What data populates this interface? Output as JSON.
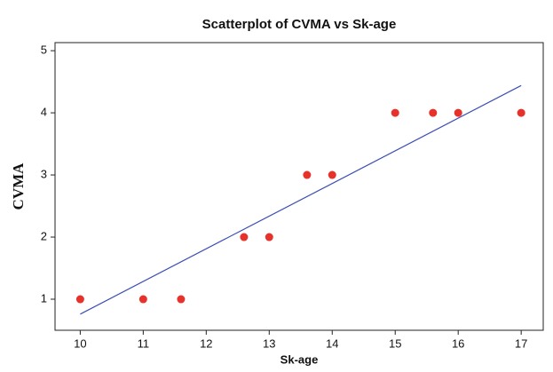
{
  "chart_data": {
    "type": "scatter",
    "title": "Scatterplot of CVMA vs Sk-age",
    "x_label": "Sk-age",
    "y_label": "CVMA",
    "series": [
      {
        "color": "#e8312a",
        "x": [
          10,
          11,
          11.6,
          12.6,
          13,
          13.6,
          14,
          15,
          15.6,
          16,
          17
        ],
        "values": [
          1,
          1,
          1,
          2,
          2,
          3,
          3,
          4,
          4,
          4,
          4
        ]
      }
    ],
    "fit_line": {
      "color": "#3d4fb5",
      "x": [
        10,
        17
      ],
      "y": [
        0.76,
        4.44
      ]
    },
    "xlim": [
      9.6,
      17.35
    ],
    "xticks": [
      10,
      11,
      12,
      13,
      14,
      15,
      16,
      17
    ],
    "ylim": [
      0.5,
      5.13
    ],
    "yticks": [
      1,
      2,
      3,
      4,
      5
    ]
  }
}
